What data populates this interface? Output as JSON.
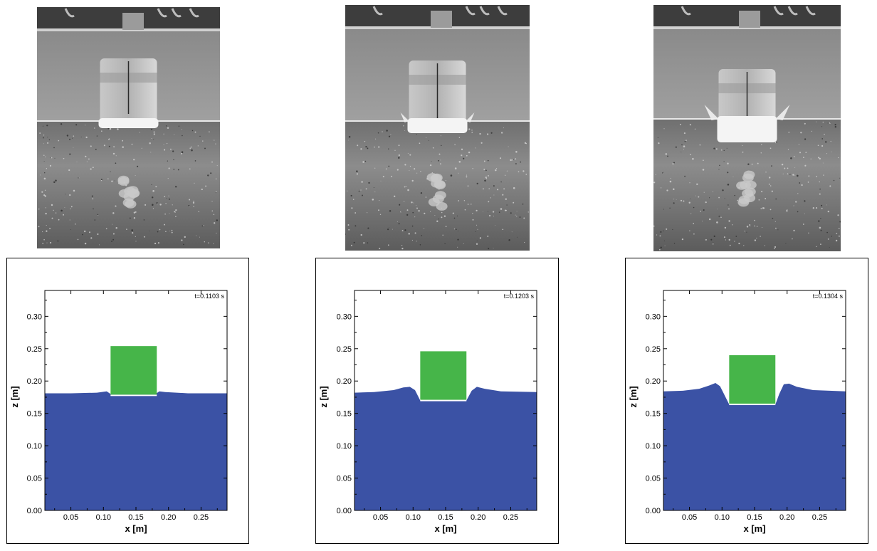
{
  "colors": {
    "water": "#3b52a5",
    "body": "#46b549",
    "axes": "#000000"
  },
  "photos": [
    {
      "name": "experiment-photo-1"
    },
    {
      "name": "experiment-photo-2"
    },
    {
      "name": "experiment-photo-3"
    }
  ],
  "chart_data": [
    {
      "type": "area",
      "time_label": "t=0.1103 s",
      "xlabel": "x [m]",
      "ylabel": "z [m]",
      "xlim": [
        0.01,
        0.29
      ],
      "ylim": [
        0.0,
        0.34
      ],
      "xticks": [
        "0.05",
        "0.10",
        "0.15",
        "0.20",
        "0.25"
      ],
      "yticks": [
        "0.00",
        "0.05",
        "0.10",
        "0.15",
        "0.20",
        "0.25",
        "0.30"
      ],
      "free_surface": {
        "x": [
          0.01,
          0.05,
          0.09,
          0.105,
          0.111,
          0.18,
          0.186,
          0.195,
          0.23,
          0.29
        ],
        "z": [
          0.181,
          0.181,
          0.182,
          0.184,
          0.18,
          0.18,
          0.184,
          0.183,
          0.181,
          0.181
        ]
      },
      "body": {
        "x_left": 0.111,
        "x_right": 0.182,
        "z_bottom": 0.179,
        "z_top": 0.254
      }
    },
    {
      "type": "area",
      "time_label": "t=0.1203 s",
      "xlabel": "x [m]",
      "ylabel": "z [m]",
      "xlim": [
        0.01,
        0.29
      ],
      "ylim": [
        0.0,
        0.34
      ],
      "xticks": [
        "0.05",
        "0.10",
        "0.15",
        "0.20",
        "0.25"
      ],
      "yticks": [
        "0.00",
        "0.05",
        "0.10",
        "0.15",
        "0.20",
        "0.25",
        "0.30"
      ],
      "free_surface": {
        "x": [
          0.01,
          0.04,
          0.07,
          0.085,
          0.095,
          0.103,
          0.111,
          0.182,
          0.19,
          0.198,
          0.21,
          0.235,
          0.29
        ],
        "z": [
          0.182,
          0.183,
          0.186,
          0.19,
          0.191,
          0.186,
          0.17,
          0.17,
          0.185,
          0.191,
          0.188,
          0.184,
          0.183
        ]
      },
      "body": {
        "x_left": 0.111,
        "x_right": 0.182,
        "z_bottom": 0.171,
        "z_top": 0.246
      }
    },
    {
      "type": "area",
      "time_label": "t=0.1304 s",
      "xlabel": "x [m]",
      "ylabel": "z [m]",
      "xlim": [
        0.01,
        0.29
      ],
      "ylim": [
        0.0,
        0.34
      ],
      "xticks": [
        "0.05",
        "0.10",
        "0.15",
        "0.20",
        "0.25"
      ],
      "yticks": [
        "0.00",
        "0.05",
        "0.10",
        "0.15",
        "0.20",
        "0.25",
        "0.30"
      ],
      "free_surface": {
        "x": [
          0.01,
          0.04,
          0.065,
          0.08,
          0.09,
          0.097,
          0.104,
          0.111,
          0.182,
          0.188,
          0.195,
          0.203,
          0.215,
          0.24,
          0.29
        ],
        "z": [
          0.184,
          0.185,
          0.188,
          0.193,
          0.197,
          0.192,
          0.178,
          0.164,
          0.164,
          0.18,
          0.195,
          0.196,
          0.191,
          0.186,
          0.184
        ]
      },
      "body": {
        "x_left": 0.111,
        "x_right": 0.182,
        "z_bottom": 0.165,
        "z_top": 0.24
      }
    }
  ]
}
